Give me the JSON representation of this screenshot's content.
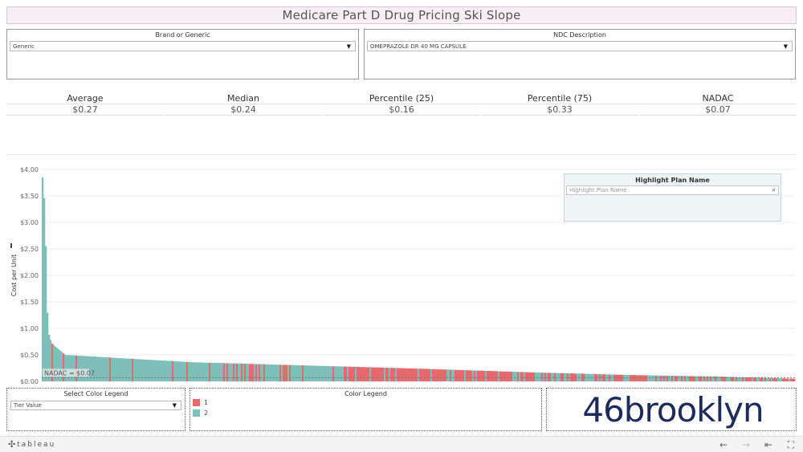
{
  "title": "Medicare Part D Drug Pricing Ski Slope",
  "filters": {
    "brand": {
      "label": "Brand or Generic",
      "value": "Generic"
    },
    "ndc": {
      "label": "NDC Description",
      "value": "OMEPRAZOLE DR 40 MG CAPSULE"
    }
  },
  "stats": [
    {
      "label": "Average",
      "value": "$0.27"
    },
    {
      "label": "Median",
      "value": "$0.24"
    },
    {
      "label": "Percentile (25)",
      "value": "$0.16"
    },
    {
      "label": "Percentile (75)",
      "value": "$0.33"
    },
    {
      "label": "NADAC",
      "value": "$0.07"
    }
  ],
  "highlight": {
    "title": "Highlight Plan Name",
    "placeholder": "Highlight Plan Name"
  },
  "color_legend_select": {
    "label": "Select Color Legend",
    "value": "Tier Value"
  },
  "color_legend": {
    "title": "Color Legend",
    "items": [
      {
        "label": "1",
        "color": "#e46a6e"
      },
      {
        "label": "2",
        "color": "#7fbfb9"
      }
    ]
  },
  "logo_text": "46brooklyn",
  "footer": {
    "brand": "tableau"
  },
  "chart_data": {
    "type": "bar",
    "ylabel": "Cost per Unit",
    "ylim": [
      0,
      4.0
    ],
    "yticks": [
      "$0.00",
      "$0.50",
      "$1.00",
      "$1.50",
      "$2.00",
      "$2.50",
      "$3.00",
      "$3.50",
      "$4.00"
    ],
    "reference_line": {
      "label": "NADAC = $0.07",
      "value": 0.07
    },
    "colors": {
      "tier_1": "#e46a6e",
      "tier_2": "#7fbfb9"
    },
    "series_profile": [
      {
        "position": 0.0,
        "value": 3.85
      },
      {
        "position": 0.003,
        "value": 3.3
      },
      {
        "position": 0.007,
        "value": 0.95
      },
      {
        "position": 0.012,
        "value": 0.72
      },
      {
        "position": 0.03,
        "value": 0.5
      },
      {
        "position": 0.1,
        "value": 0.44
      },
      {
        "position": 0.2,
        "value": 0.36
      },
      {
        "position": 0.35,
        "value": 0.3
      },
      {
        "position": 0.5,
        "value": 0.24
      },
      {
        "position": 0.65,
        "value": 0.17
      },
      {
        "position": 0.78,
        "value": 0.12
      },
      {
        "position": 0.9,
        "value": 0.09
      },
      {
        "position": 1.0,
        "value": 0.05
      }
    ]
  }
}
